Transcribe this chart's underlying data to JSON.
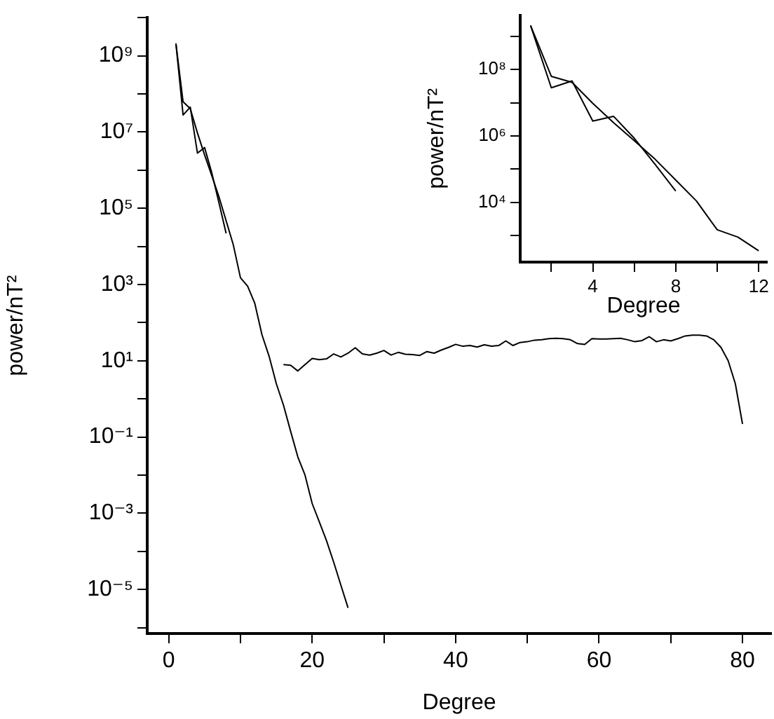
{
  "chart_data": [
    {
      "type": "line",
      "xlabel": "Degree",
      "ylabel": "power/nT²",
      "log": "y",
      "xlim": [
        -3,
        84
      ],
      "ylim": [
        7e-07,
        10000000000.0
      ],
      "xticks": [
        0,
        {
          "value": 10,
          "label": null
        },
        20,
        {
          "value": 30,
          "label": null
        },
        40,
        {
          "value": 50,
          "label": null
        },
        60,
        {
          "value": 70,
          "label": null
        },
        80
      ],
      "yticks": [
        {
          "value": 1e-06,
          "label": null
        },
        {
          "value": 1e-05,
          "label": "10⁻⁵"
        },
        {
          "value": 0.0001,
          "label": null
        },
        {
          "value": 0.001,
          "label": "10⁻³"
        },
        {
          "value": 0.01,
          "label": null
        },
        {
          "value": 0.1,
          "label": "10⁻¹"
        },
        {
          "value": 1,
          "label": null
        },
        {
          "value": 10,
          "label": "10¹"
        },
        {
          "value": 100,
          "label": null
        },
        {
          "value": 1000,
          "label": "10³"
        },
        {
          "value": 10000.0,
          "label": null
        },
        {
          "value": 100000.0,
          "label": "10⁵"
        },
        {
          "value": 1000000.0,
          "label": null
        },
        {
          "value": 10000000.0,
          "label": "10⁷"
        },
        {
          "value": 100000000.0,
          "label": null
        },
        {
          "value": 1000000000.0,
          "label": "10⁹"
        },
        {
          "value": 10000000000.0,
          "label": null
        }
      ],
      "series": [
        {
          "color": "#000000",
          "x": [
            1,
            2,
            3,
            4,
            5,
            6,
            7,
            8,
            9,
            10,
            11,
            12,
            13,
            14,
            15,
            16,
            17,
            18,
            19,
            20,
            21,
            22,
            23,
            24,
            25
          ],
          "values": [
            2100000000.0,
            62000000.0,
            41000000.0,
            9500000.0,
            2500000.0,
            720000.0,
            200000.0,
            47000.0,
            11000.0,
            1500.0,
            900,
            320,
            48,
            13,
            2.5,
            0.68,
            0.14,
            0.03,
            0.01,
            0.0018,
            0.00059,
            0.00019,
            5.2e-05,
            1.3e-05,
            3.3e-06
          ]
        },
        {
          "color": "#000000",
          "x": [
            1,
            2,
            3,
            4,
            5,
            6,
            7,
            8
          ],
          "values": [
            2100000000.0,
            28000000.0,
            45000000.0,
            2800000.0,
            3900000.0,
            850000.0,
            140000.0,
            22000.0
          ]
        },
        {
          "color": "#000000",
          "x": [
            16,
            17,
            18,
            19,
            20,
            21,
            22,
            23,
            24,
            25,
            26,
            27,
            28,
            29,
            30,
            31,
            32,
            33,
            34,
            35,
            36,
            37,
            38,
            39,
            40,
            41,
            42,
            43,
            44,
            45,
            46,
            47,
            48,
            49,
            50,
            51,
            52,
            53,
            54,
            55,
            56,
            57,
            58,
            59,
            60,
            61,
            62,
            63,
            64,
            65,
            66,
            67,
            68,
            69,
            70,
            71,
            72,
            73,
            74,
            75,
            76,
            77,
            78,
            79,
            80
          ],
          "values": [
            7.9,
            7.6,
            5.4,
            7.9,
            11.5,
            10.7,
            11.2,
            15.1,
            12.6,
            15.8,
            21.9,
            15.1,
            14.1,
            15.8,
            18.6,
            14.1,
            16.6,
            14.8,
            14.5,
            13.8,
            17.4,
            15.8,
            19.1,
            22.4,
            26.9,
            24,
            25.1,
            22.9,
            26.3,
            24,
            25.1,
            33.1,
            25.1,
            30.2,
            31.6,
            34.7,
            35.5,
            38,
            38.9,
            38,
            35.5,
            28.2,
            26.9,
            38,
            37.2,
            37.2,
            38,
            38.9,
            35.5,
            31.6,
            33.9,
            42.7,
            31.6,
            35.5,
            33.1,
            38,
            44.7,
            46.8,
            46.8,
            44.7,
            35.5,
            22.4,
            10,
            2.5,
            0.22
          ]
        }
      ]
    },
    {
      "type": "line",
      "xlabel": "Degree",
      "ylabel": "power/nT²",
      "log": "y",
      "xlim": [
        0.5,
        12.4
      ],
      "ylim": [
        160,
        4300000000.0
      ],
      "xticks": [
        {
          "value": 2,
          "label": null
        },
        4,
        {
          "value": 6,
          "label": null
        },
        8,
        {
          "value": 10,
          "label": null
        },
        12
      ],
      "yticks": [
        {
          "value": 1000,
          "label": null
        },
        {
          "value": 10000.0,
          "label": "10⁴"
        },
        {
          "value": 100000.0,
          "label": null
        },
        {
          "value": 1000000.0,
          "label": "10⁶"
        },
        {
          "value": 10000000.0,
          "label": null
        },
        {
          "value": 100000000.0,
          "label": "10⁸"
        },
        {
          "value": 1000000000.0,
          "label": null
        }
      ],
      "series": [
        {
          "color": "#000000",
          "x": [
            1,
            2,
            3,
            4,
            5,
            6,
            7,
            8,
            9,
            10,
            11,
            12
          ],
          "values": [
            2100000000.0,
            62000000.0,
            41000000.0,
            9500000.0,
            2500000.0,
            720000.0,
            200000.0,
            47000.0,
            11000.0,
            1500.0,
            900,
            350
          ]
        },
        {
          "color": "#000000",
          "x": [
            1,
            2,
            3,
            4,
            5,
            6,
            7,
            8
          ],
          "values": [
            2100000000.0,
            28000000.0,
            45000000.0,
            2800000.0,
            3900000.0,
            850000.0,
            140000.0,
            22000.0
          ]
        }
      ]
    }
  ]
}
